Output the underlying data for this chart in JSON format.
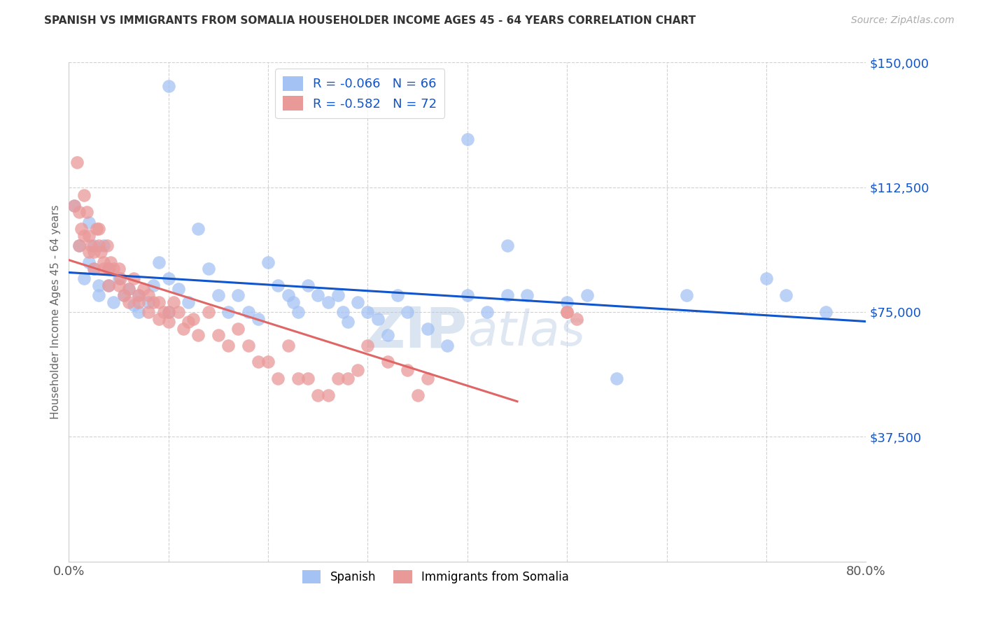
{
  "title": "SPANISH VS IMMIGRANTS FROM SOMALIA HOUSEHOLDER INCOME AGES 45 - 64 YEARS CORRELATION CHART",
  "source": "Source: ZipAtlas.com",
  "ylabel": "Householder Income Ages 45 - 64 years",
  "xlim": [
    0.0,
    0.8
  ],
  "ylim": [
    0,
    150000
  ],
  "yticks": [
    0,
    37500,
    75000,
    112500,
    150000
  ],
  "ytick_labels": [
    "",
    "$37,500",
    "$75,000",
    "$112,500",
    "$150,000"
  ],
  "xticks": [
    0.0,
    0.1,
    0.2,
    0.3,
    0.4,
    0.5,
    0.6,
    0.7,
    0.8
  ],
  "xtick_labels": [
    "0.0%",
    "",
    "",
    "",
    "",
    "",
    "",
    "",
    "80.0%"
  ],
  "legend_r_blue": "-0.066",
  "legend_n_blue": "66",
  "legend_r_pink": "-0.582",
  "legend_n_pink": "72",
  "legend_label_blue": "Spanish",
  "legend_label_pink": "Immigrants from Somalia",
  "blue_color": "#a4c2f4",
  "pink_color": "#ea9999",
  "blue_line_color": "#1155cc",
  "pink_line_color": "#e06666",
  "background_color": "#ffffff",
  "watermark": "ZIP atlas",
  "spanish_x": [
    0.005,
    0.01,
    0.015,
    0.02,
    0.02,
    0.025,
    0.025,
    0.03,
    0.03,
    0.035,
    0.04,
    0.04,
    0.045,
    0.05,
    0.055,
    0.06,
    0.065,
    0.07,
    0.07,
    0.08,
    0.085,
    0.09,
    0.1,
    0.1,
    0.11,
    0.12,
    0.13,
    0.14,
    0.15,
    0.16,
    0.17,
    0.18,
    0.19,
    0.2,
    0.21,
    0.22,
    0.225,
    0.23,
    0.24,
    0.25,
    0.26,
    0.27,
    0.275,
    0.28,
    0.29,
    0.3,
    0.31,
    0.32,
    0.33,
    0.34,
    0.36,
    0.38,
    0.4,
    0.42,
    0.44,
    0.44,
    0.46,
    0.5,
    0.52,
    0.55,
    0.62,
    0.7,
    0.72,
    0.76,
    0.4,
    0.1
  ],
  "spanish_y": [
    107000,
    95000,
    85000,
    102000,
    90000,
    95000,
    88000,
    83000,
    80000,
    95000,
    88000,
    83000,
    78000,
    85000,
    80000,
    82000,
    77000,
    80000,
    75000,
    78000,
    83000,
    90000,
    85000,
    75000,
    82000,
    78000,
    100000,
    88000,
    80000,
    75000,
    80000,
    75000,
    73000,
    90000,
    83000,
    80000,
    78000,
    75000,
    83000,
    80000,
    78000,
    80000,
    75000,
    72000,
    78000,
    75000,
    73000,
    68000,
    80000,
    75000,
    70000,
    65000,
    80000,
    75000,
    95000,
    80000,
    80000,
    78000,
    80000,
    55000,
    80000,
    85000,
    80000,
    75000,
    127000,
    143000
  ],
  "somalia_x": [
    0.005,
    0.008,
    0.01,
    0.01,
    0.012,
    0.015,
    0.015,
    0.018,
    0.02,
    0.02,
    0.022,
    0.025,
    0.025,
    0.028,
    0.03,
    0.03,
    0.032,
    0.035,
    0.035,
    0.038,
    0.04,
    0.04,
    0.042,
    0.045,
    0.05,
    0.05,
    0.052,
    0.055,
    0.06,
    0.06,
    0.065,
    0.07,
    0.07,
    0.075,
    0.08,
    0.08,
    0.085,
    0.09,
    0.09,
    0.095,
    0.1,
    0.1,
    0.105,
    0.11,
    0.115,
    0.12,
    0.125,
    0.13,
    0.14,
    0.15,
    0.16,
    0.17,
    0.18,
    0.19,
    0.2,
    0.21,
    0.22,
    0.23,
    0.24,
    0.25,
    0.26,
    0.27,
    0.28,
    0.29,
    0.3,
    0.32,
    0.34,
    0.35,
    0.36,
    0.5,
    0.5,
    0.51
  ],
  "somalia_y": [
    107000,
    120000,
    105000,
    95000,
    100000,
    110000,
    98000,
    105000,
    98000,
    93000,
    95000,
    93000,
    88000,
    100000,
    100000,
    95000,
    93000,
    90000,
    88000,
    95000,
    88000,
    83000,
    90000,
    88000,
    88000,
    83000,
    85000,
    80000,
    82000,
    78000,
    85000,
    80000,
    78000,
    82000,
    80000,
    75000,
    78000,
    78000,
    73000,
    75000,
    75000,
    72000,
    78000,
    75000,
    70000,
    72000,
    73000,
    68000,
    75000,
    68000,
    65000,
    70000,
    65000,
    60000,
    60000,
    55000,
    65000,
    55000,
    55000,
    50000,
    50000,
    55000,
    55000,
    57500,
    65000,
    60000,
    57500,
    50000,
    55000,
    75000,
    75000,
    73000
  ]
}
